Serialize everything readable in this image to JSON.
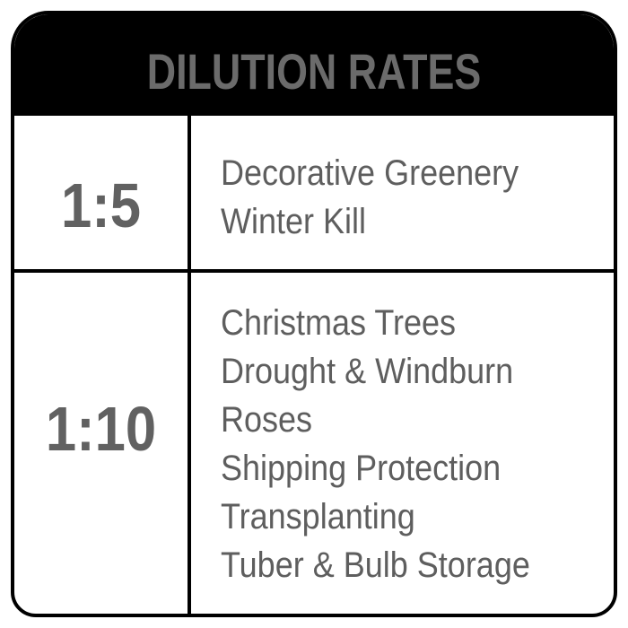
{
  "title": "DILUTION RATES",
  "rows": [
    {
      "ratio": "1:5",
      "uses": [
        "Decorative Greenery",
        "Winter Kill"
      ]
    },
    {
      "ratio": "1:10",
      "uses": [
        "Christmas Trees",
        "Drought & Windburn",
        "Roses",
        "Shipping Protection",
        "Transplanting",
        "Tuber & Bulb Storage"
      ]
    }
  ],
  "colors": {
    "header_bg": "#000000",
    "text": "#616161",
    "border": "#000000"
  }
}
